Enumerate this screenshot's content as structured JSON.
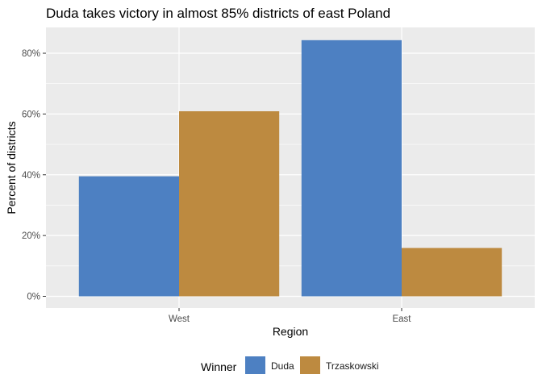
{
  "chart_data": {
    "type": "bar",
    "title": "Duda takes victory in almost 85% districts of east Poland",
    "xlabel": "Region",
    "ylabel": "Percent of districts",
    "categories": [
      "West",
      "East"
    ],
    "series": [
      {
        "name": "Duda",
        "values": [
          39.5,
          84.3
        ],
        "color": "#4d80c2"
      },
      {
        "name": "Trzaskowski",
        "values": [
          60.9,
          15.9
        ],
        "color": "#bd8a40"
      }
    ],
    "ylim": [
      0,
      88.5
    ],
    "yticks": [
      0,
      20,
      40,
      60,
      80
    ],
    "ytick_labels": [
      "0%",
      "20%",
      "40%",
      "60%",
      "80%"
    ],
    "legend_title": "Winner",
    "legend_position": "bottom",
    "grid": true,
    "panel_color": "#ebebeb"
  }
}
